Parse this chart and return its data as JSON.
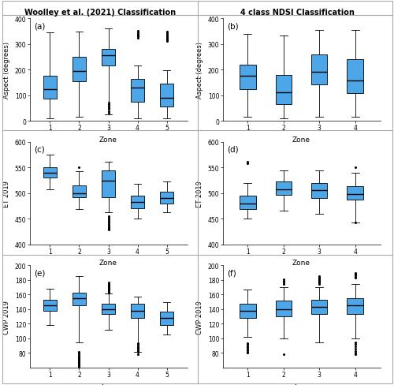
{
  "col1_title": "Woolley et al. (2021) Classification",
  "col2_title": "4 class NDSI Classification",
  "panel_labels": [
    "(a)",
    "(b)",
    "(c)",
    "(d)",
    "(e)",
    "(f)"
  ],
  "box_color_face": "#4da6e8",
  "panel_a": {
    "ylabel": "Aspect (degrees)",
    "xlabel": "Zone",
    "ylim": [
      0,
      400
    ],
    "yticks": [
      0,
      100,
      200,
      300,
      400
    ],
    "zones": [
      "1",
      "2",
      "3",
      "4",
      "5"
    ],
    "boxes": [
      {
        "q1": 85,
        "median": 125,
        "q3": 175,
        "whislo": 10,
        "whishi": 345,
        "fliers": []
      },
      {
        "q1": 155,
        "median": 195,
        "q3": 250,
        "whislo": 15,
        "whishi": 350,
        "fliers": []
      },
      {
        "q1": 215,
        "median": 255,
        "q3": 280,
        "whislo": 25,
        "whishi": 360,
        "fliers": [
          30,
          45,
          55,
          65,
          70,
          38,
          48,
          58
        ]
      },
      {
        "q1": 75,
        "median": 130,
        "q3": 165,
        "whislo": 10,
        "whishi": 215,
        "fliers": [
          325,
          338,
          345,
          352,
          330,
          340,
          335
        ]
      },
      {
        "q1": 55,
        "median": 90,
        "q3": 145,
        "whislo": 10,
        "whishi": 198,
        "fliers": [
          312,
          318,
          325,
          330,
          338,
          342,
          348,
          320,
          315,
          322,
          328,
          335,
          345
        ]
      }
    ]
  },
  "panel_b": {
    "ylabel": "Aspect (degrees)",
    "xlabel": "Zone",
    "ylim": [
      0,
      400
    ],
    "yticks": [
      0,
      100,
      200,
      300,
      400
    ],
    "zones": [
      "1",
      "2",
      "3",
      "4"
    ],
    "boxes": [
      {
        "q1": 125,
        "median": 175,
        "q3": 218,
        "whislo": 15,
        "whishi": 340,
        "fliers": []
      },
      {
        "q1": 65,
        "median": 112,
        "q3": 178,
        "whislo": 10,
        "whishi": 335,
        "fliers": []
      },
      {
        "q1": 142,
        "median": 192,
        "q3": 258,
        "whislo": 15,
        "whishi": 355,
        "fliers": []
      },
      {
        "q1": 108,
        "median": 158,
        "q3": 242,
        "whislo": 15,
        "whishi": 355,
        "fliers": []
      }
    ]
  },
  "panel_c": {
    "ylabel": "ET 2019",
    "xlabel": "Zone",
    "ylim": [
      400,
      600
    ],
    "yticks": [
      400,
      450,
      500,
      550,
      600
    ],
    "zones": [
      "1",
      "2",
      "3",
      "4",
      "5"
    ],
    "boxes": [
      {
        "q1": 530,
        "median": 540,
        "q3": 550,
        "whislo": 508,
        "whishi": 575,
        "fliers": []
      },
      {
        "q1": 492,
        "median": 500,
        "q3": 515,
        "whislo": 468,
        "whishi": 543,
        "fliers": [
          550
        ]
      },
      {
        "q1": 492,
        "median": 525,
        "q3": 545,
        "whislo": 462,
        "whishi": 562,
        "fliers": [
          430,
          432,
          435,
          438,
          440,
          443,
          445,
          448,
          452,
          455,
          428,
          433
        ]
      },
      {
        "q1": 470,
        "median": 483,
        "q3": 495,
        "whislo": 450,
        "whishi": 518,
        "fliers": []
      },
      {
        "q1": 480,
        "median": 490,
        "q3": 503,
        "whislo": 462,
        "whishi": 522,
        "fliers": []
      }
    ]
  },
  "panel_d": {
    "ylabel": "ET 2019",
    "xlabel": "Zone",
    "ylim": [
      400,
      600
    ],
    "yticks": [
      400,
      450,
      500,
      550,
      600
    ],
    "zones": [
      "1",
      "2",
      "3",
      "4"
    ],
    "boxes": [
      {
        "q1": 468,
        "median": 480,
        "q3": 495,
        "whislo": 450,
        "whishi": 520,
        "fliers": [
          558,
          562
        ]
      },
      {
        "q1": 497,
        "median": 508,
        "q3": 522,
        "whislo": 465,
        "whishi": 545,
        "fliers": []
      },
      {
        "q1": 490,
        "median": 505,
        "q3": 520,
        "whislo": 460,
        "whishi": 545,
        "fliers": []
      },
      {
        "q1": 487,
        "median": 498,
        "q3": 513,
        "whislo": 442,
        "whishi": 540,
        "fliers": [
          442,
          550
        ]
      }
    ]
  },
  "panel_e": {
    "ylabel": "CWP 2019",
    "xlabel": "Zone",
    "ylim": [
      60,
      200
    ],
    "yticks": [
      80,
      100,
      120,
      140,
      160,
      180,
      200
    ],
    "zones": [
      "1",
      "2",
      "3",
      "4",
      "5"
    ],
    "boxes": [
      {
        "q1": 138,
        "median": 145,
        "q3": 153,
        "whislo": 118,
        "whishi": 168,
        "fliers": []
      },
      {
        "q1": 145,
        "median": 155,
        "q3": 163,
        "whislo": 95,
        "whishi": 185,
        "fliers": [
          62,
          64,
          66,
          68,
          70,
          72,
          74,
          76,
          78,
          80,
          82,
          63,
          65,
          67,
          69,
          71,
          73,
          75,
          60
        ]
      },
      {
        "q1": 133,
        "median": 140,
        "q3": 148,
        "whislo": 112,
        "whishi": 162,
        "fliers": [
          165,
          167,
          169,
          171,
          173,
          175,
          177,
          166,
          168,
          170,
          172,
          174,
          176,
          163,
          164
        ]
      },
      {
        "q1": 128,
        "median": 138,
        "q3": 147,
        "whislo": 82,
        "whishi": 157,
        "fliers": [
          82,
          84,
          86,
          88,
          90,
          92,
          94,
          78,
          83,
          87
        ]
      },
      {
        "q1": 118,
        "median": 128,
        "q3": 137,
        "whislo": 105,
        "whishi": 150,
        "fliers": []
      }
    ]
  },
  "panel_f": {
    "ylabel": "CWP 2019",
    "xlabel": "Zone",
    "ylim": [
      60,
      200
    ],
    "yticks": [
      80,
      100,
      120,
      140,
      160,
      180,
      200
    ],
    "zones": [
      "1",
      "2",
      "3",
      "4"
    ],
    "boxes": [
      {
        "q1": 128,
        "median": 138,
        "q3": 148,
        "whislo": 102,
        "whishi": 167,
        "fliers": [
          82,
          84,
          86,
          88,
          90,
          92,
          94,
          80
        ]
      },
      {
        "q1": 130,
        "median": 140,
        "q3": 152,
        "whislo": 100,
        "whishi": 170,
        "fliers": [
          78,
          175,
          177,
          179,
          181
        ]
      },
      {
        "q1": 133,
        "median": 143,
        "q3": 153,
        "whislo": 95,
        "whishi": 170,
        "fliers": [
          175,
          177,
          179,
          181,
          183,
          185,
          176,
          178,
          180,
          182,
          184
        ]
      },
      {
        "q1": 133,
        "median": 145,
        "q3": 155,
        "whislo": 100,
        "whishi": 175,
        "fliers": [
          80,
          83,
          86,
          89,
          92,
          95,
          78,
          183,
          186,
          188,
          190,
          184,
          187,
          189
        ]
      }
    ]
  }
}
